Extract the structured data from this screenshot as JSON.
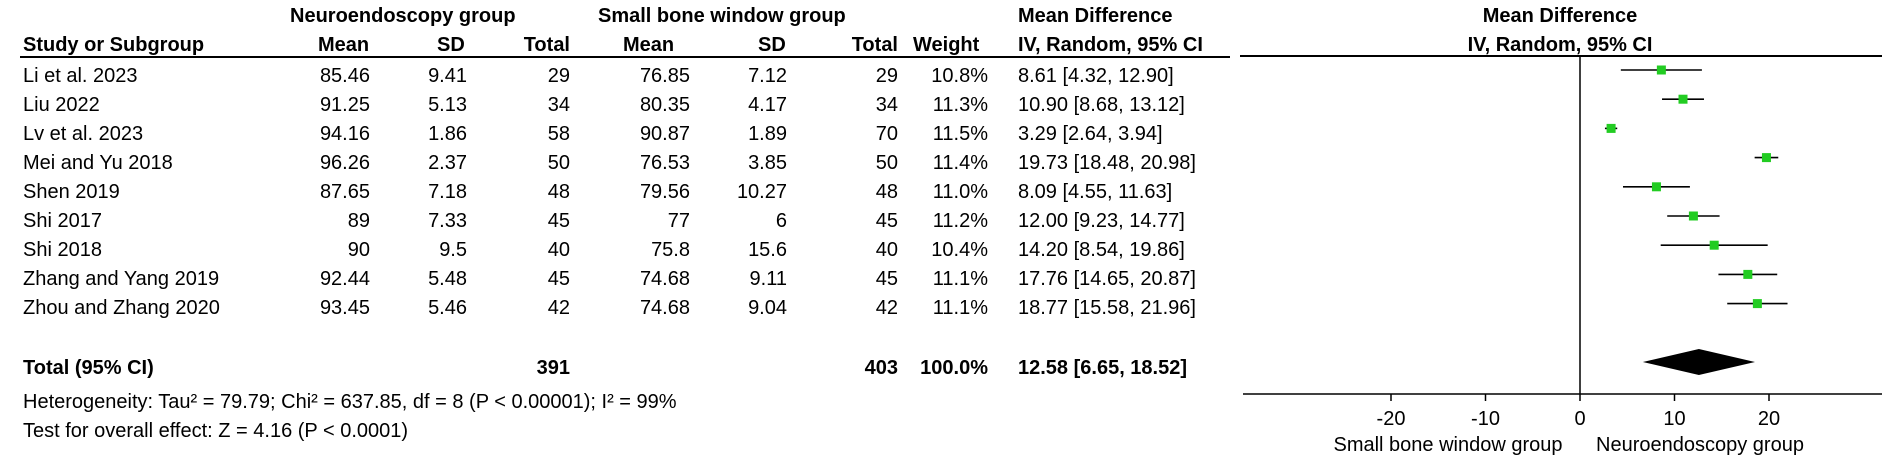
{
  "headers": {
    "group1": "Neuroendoscopy group",
    "group2": "Small bone window group",
    "md_title": "Mean Difference",
    "plot_title": "Mean Difference",
    "study": "Study or Subgroup",
    "mean1": "Mean",
    "sd1": "SD",
    "total1": "Total",
    "mean2": "Mean",
    "sd2": "SD",
    "total2": "Total",
    "weight": "Weight",
    "md_sub": "IV, Random, 95% CI",
    "plot_sub": "IV, Random, 95% CI"
  },
  "studies": [
    {
      "name": "Li et al. 2023",
      "mean1": "85.46",
      "sd1": "9.41",
      "total1": "29",
      "mean2": "76.85",
      "sd2": "7.12",
      "total2": "29",
      "weight": "10.8%",
      "ci": "8.61 [4.32, 12.90]"
    },
    {
      "name": "Liu 2022",
      "mean1": "91.25",
      "sd1": "5.13",
      "total1": "34",
      "mean2": "80.35",
      "sd2": "4.17",
      "total2": "34",
      "weight": "11.3%",
      "ci": "10.90 [8.68, 13.12]"
    },
    {
      "name": "Lv et al. 2023",
      "mean1": "94.16",
      "sd1": "1.86",
      "total1": "58",
      "mean2": "90.87",
      "sd2": "1.89",
      "total2": "70",
      "weight": "11.5%",
      "ci": "3.29 [2.64, 3.94]"
    },
    {
      "name": "Mei and Yu 2018",
      "mean1": "96.26",
      "sd1": "2.37",
      "total1": "50",
      "mean2": "76.53",
      "sd2": "3.85",
      "total2": "50",
      "weight": "11.4%",
      "ci": "19.73 [18.48, 20.98]"
    },
    {
      "name": "Shen 2019",
      "mean1": "87.65",
      "sd1": "7.18",
      "total1": "48",
      "mean2": "79.56",
      "sd2": "10.27",
      "total2": "48",
      "weight": "11.0%",
      "ci": "8.09 [4.55, 11.63]"
    },
    {
      "name": "Shi 2017",
      "mean1": "89",
      "sd1": "7.33",
      "total1": "45",
      "mean2": "77",
      "sd2": "6",
      "total2": "45",
      "weight": "11.2%",
      "ci": "12.00 [9.23, 14.77]"
    },
    {
      "name": "Shi  2018",
      "mean1": "90",
      "sd1": "9.5",
      "total1": "40",
      "mean2": "75.8",
      "sd2": "15.6",
      "total2": "40",
      "weight": "10.4%",
      "ci": "14.20 [8.54, 19.86]"
    },
    {
      "name": "Zhang and Yang 2019",
      "mean1": "92.44",
      "sd1": "5.48",
      "total1": "45",
      "mean2": "74.68",
      "sd2": "9.11",
      "total2": "45",
      "weight": "11.1%",
      "ci": "17.76 [14.65, 20.87]"
    },
    {
      "name": "Zhou and Zhang 2020",
      "mean1": "93.45",
      "sd1": "5.46",
      "total1": "42",
      "mean2": "74.68",
      "sd2": "9.04",
      "total2": "42",
      "weight": "11.1%",
      "ci": "18.77 [15.58, 21.96]"
    }
  ],
  "total": {
    "label": "Total (95% CI)",
    "total1": "391",
    "total2": "403",
    "weight": "100.0%",
    "ci": "12.58 [6.65, 18.52]"
  },
  "heterogeneity": "Heterogeneity: Tau² = 79.79; Chi² = 637.85, df = 8 (P < 0.00001); I² = 99%",
  "overall_effect": "Test for overall effect: Z = 4.16 (P < 0.0001)",
  "chart_data": {
    "type": "forest",
    "xlim": [
      -30,
      30
    ],
    "ticks": [
      -20,
      -10,
      0,
      10,
      20
    ],
    "tick_labels": [
      "-20",
      "-10",
      "0",
      "10",
      "20"
    ],
    "left_label": "Small bone window group",
    "right_label": "Neuroendoscopy group",
    "marker_color": "#22cc22",
    "diamond_color": "#000000",
    "studies": [
      {
        "name": "Li et al. 2023",
        "md": 8.61,
        "lo": 4.32,
        "hi": 12.9
      },
      {
        "name": "Liu 2022",
        "md": 10.9,
        "lo": 8.68,
        "hi": 13.12
      },
      {
        "name": "Lv et al. 2023",
        "md": 3.29,
        "lo": 2.64,
        "hi": 3.94
      },
      {
        "name": "Mei and Yu 2018",
        "md": 19.73,
        "lo": 18.48,
        "hi": 20.98
      },
      {
        "name": "Shen 2019",
        "md": 8.09,
        "lo": 4.55,
        "hi": 11.63
      },
      {
        "name": "Shi 2017",
        "md": 12.0,
        "lo": 9.23,
        "hi": 14.77
      },
      {
        "name": "Shi  2018",
        "md": 14.2,
        "lo": 8.54,
        "hi": 19.86
      },
      {
        "name": "Zhang and Yang 2019",
        "md": 17.76,
        "lo": 14.65,
        "hi": 20.87
      },
      {
        "name": "Zhou and Zhang 2020",
        "md": 18.77,
        "lo": 15.58,
        "hi": 21.96
      }
    ],
    "overall": {
      "md": 12.58,
      "lo": 6.65,
      "hi": 18.52
    }
  }
}
